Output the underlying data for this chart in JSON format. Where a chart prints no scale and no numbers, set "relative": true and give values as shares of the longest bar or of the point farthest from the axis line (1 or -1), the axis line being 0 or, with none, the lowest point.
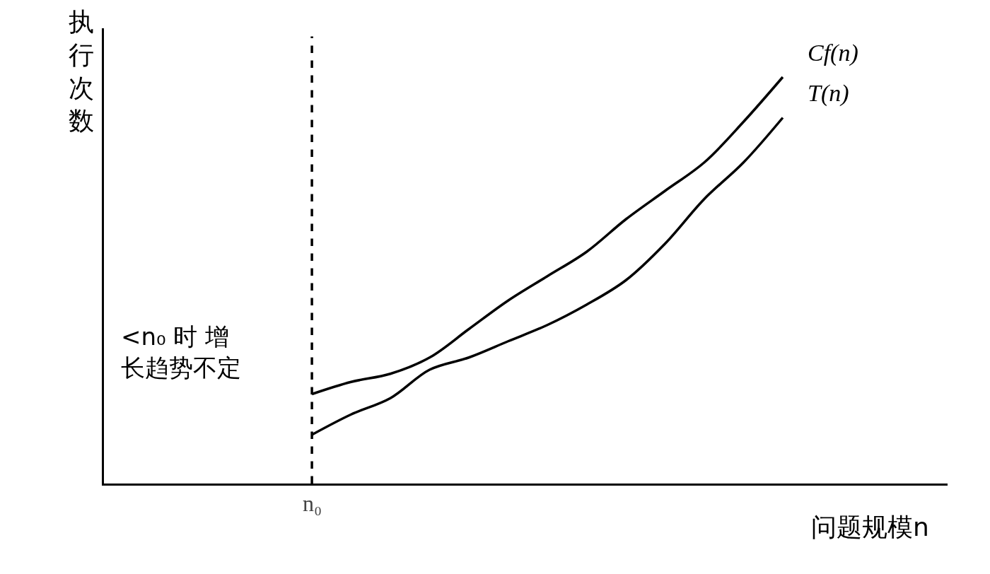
{
  "chart_data": {
    "type": "line",
    "relative": true,
    "xlabel": "问题规模n",
    "categories": [
      null,
      null,
      null,
      null,
      null,
      null,
      null,
      null,
      null,
      null,
      null,
      null,
      null
    ],
    "series": [
      {
        "name": "Cf(n)",
        "color": "#000000",
        "values": [
          0.22,
          0.25,
          0.27,
          0.31,
          0.38,
          0.45,
          0.51,
          0.57,
          0.65,
          0.72,
          0.79,
          0.89,
          1.0
        ]
      },
      {
        "name": "T(n)",
        "color": "#000000",
        "values": [
          0.12,
          0.17,
          0.21,
          0.28,
          0.31,
          0.35,
          0.39,
          0.44,
          0.5,
          0.59,
          0.7,
          0.79,
          0.9
        ]
      }
    ],
    "ref_lines": [
      {
        "axis": "x",
        "label": "n₀",
        "color": "#000000",
        "line_style": "dashed"
      }
    ],
    "annotations": [
      "<n₀ 时 增长趋势不定",
      "执行次数"
    ],
    "legend": false,
    "marker": "none",
    "line_style": "solid"
  }
}
